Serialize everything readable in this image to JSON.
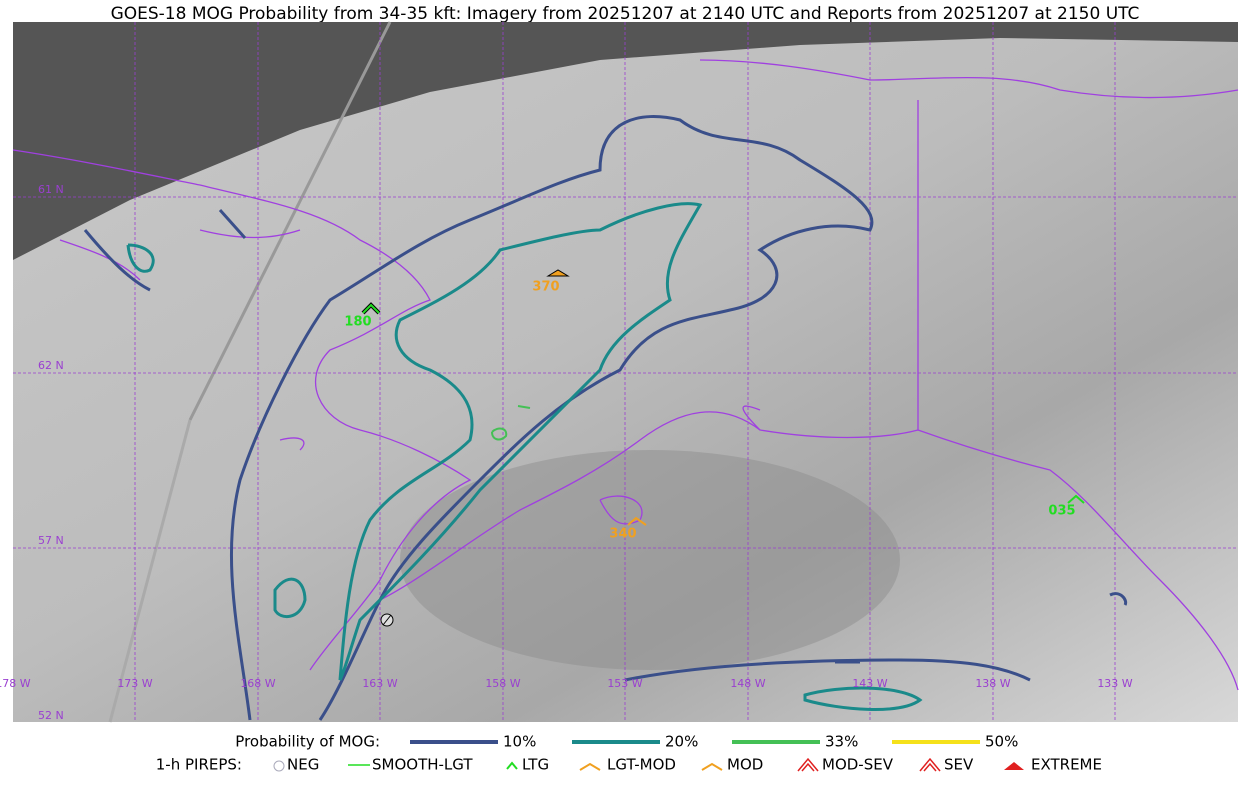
{
  "title": "GOES-18 MOG Probability from 34-35 kft: Imagery from 20251207 at 2140 UTC and Reports from 20251207 at 2150 UTC",
  "lat_labels": [
    "61 N",
    "62 N",
    "57 N",
    "52 N"
  ],
  "lon_labels": [
    "178 W",
    "173 W",
    "168 W",
    "163 W",
    "158 W",
    "153 W",
    "148 W",
    "143 W",
    "138 W",
    "133 W"
  ],
  "reports": [
    "180",
    "370",
    "340",
    "035"
  ],
  "legend": {
    "title": "Probability of MOG:",
    "items": [
      {
        "label": "10%",
        "color": "#3a4f8a"
      },
      {
        "label": "20%",
        "color": "#1a8a8a"
      },
      {
        "label": "33%",
        "color": "#44c055"
      },
      {
        "label": "50%",
        "color": "#f5e11a"
      }
    ]
  },
  "pirep_legend": {
    "title": "1-h PIREPS:",
    "items": [
      "NEG",
      "SMOOTH-LGT",
      "LTG",
      "LGT-MOD",
      "MOD",
      "MOD-SEV",
      "SEV",
      "EXTREME"
    ]
  }
}
